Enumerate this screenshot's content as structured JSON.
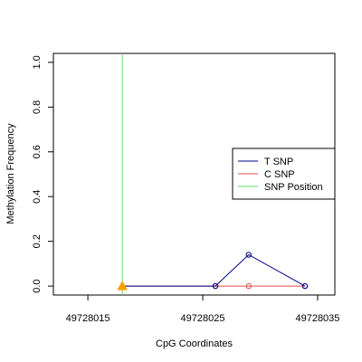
{
  "chart_data": {
    "type": "line",
    "title": "",
    "xlabel": "CpG Coordinates",
    "ylabel": "Methylation Frequency",
    "xlim": [
      49728012,
      49728036.5
    ],
    "ylim": [
      -0.04,
      1.04
    ],
    "x_ticks": [
      49728015,
      49728025,
      49728035
    ],
    "x_tick_labels": [
      "49728015",
      "49728025",
      "49728035"
    ],
    "y_ticks": [
      0.0,
      0.2,
      0.4,
      0.6,
      0.8,
      1.0
    ],
    "y_tick_labels": [
      "0.0",
      "0.2",
      "0.4",
      "0.6",
      "0.8",
      "1.0"
    ],
    "grid": false,
    "legend_position": "right",
    "series": [
      {
        "name": "T SNP",
        "color": "#00008b",
        "marker": "circle",
        "points": [
          {
            "x": 49728018,
            "y": 0.0
          },
          {
            "x": 49728026.1,
            "y": 0.0
          },
          {
            "x": 49728029,
            "y": 0.14
          },
          {
            "x": 49728033.9,
            "y": 0.0
          }
        ]
      },
      {
        "name": "C SNP",
        "color": "#e0504a",
        "marker": "circle",
        "points": [
          {
            "x": 49728018,
            "y": 0.0
          },
          {
            "x": 49728026.1,
            "y": 0.0
          },
          {
            "x": 49728029,
            "y": 0.0
          },
          {
            "x": 49728033.9,
            "y": 0.0
          }
        ]
      }
    ],
    "snp_position": {
      "name": "SNP Position",
      "color": "#66dd66",
      "marker_color": "#f5a000",
      "x": 49728018
    },
    "legend": [
      {
        "label": "T SNP",
        "color": "#00008b"
      },
      {
        "label": "C SNP",
        "color": "#e0504a"
      },
      {
        "label": "SNP Position",
        "color": "#66dd66"
      }
    ]
  }
}
